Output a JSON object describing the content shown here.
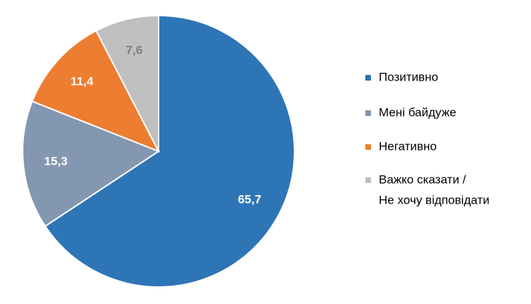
{
  "chart_data": {
    "type": "pie",
    "categories": [
      "Позитивно",
      "Мені байдуже",
      "Негативно",
      [
        "Важко сказати /",
        "Не хочу відповідати"
      ]
    ],
    "values": [
      65.7,
      15.3,
      11.4,
      7.6
    ],
    "value_labels": [
      "65,7",
      "15,3",
      "11,4",
      "7,6"
    ],
    "colors": [
      "#2e75b6",
      "#8497b0",
      "#ed7d31",
      "#bfbfbf"
    ],
    "label_colors": [
      "#ffffff",
      "#ffffff",
      "#ffffff",
      "#7f7f7f"
    ],
    "legend": "right"
  }
}
